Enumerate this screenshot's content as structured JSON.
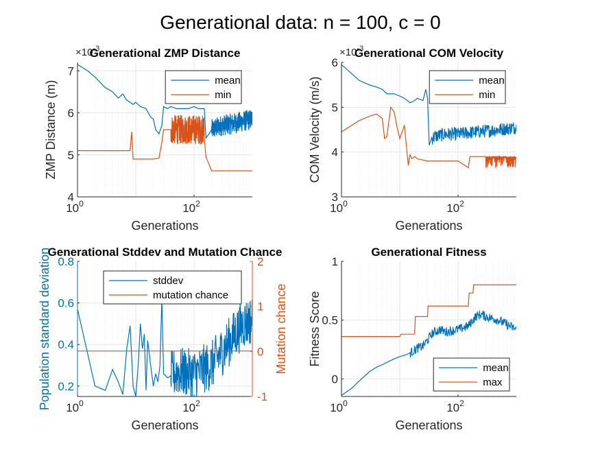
{
  "figure": {
    "title": "Generational data: n = 100, c = 0"
  },
  "colors": {
    "blue": "#0072BD",
    "orange": "#D95319",
    "axis": "#262626",
    "grid": "#D9D9D9"
  },
  "chart_data": [
    {
      "type": "line",
      "title": "Generational ZMP Distance",
      "xlabel": "Generations",
      "ylabel": "ZMP Distance (m)",
      "exponent_label": "×10",
      "exponent_sup": "-3",
      "xscale": "log",
      "xlim": [
        1,
        1000
      ],
      "ylim": [
        4,
        7.2
      ],
      "xticks": [
        1,
        100
      ],
      "xtick_labels": [
        "10",
        "10"
      ],
      "xtick_sups": [
        "0",
        "2"
      ],
      "yticks": [
        4,
        5,
        6,
        7
      ],
      "ytick_labels": [
        "4",
        "5",
        "6",
        "7"
      ],
      "grid": true,
      "legend": {
        "position": "top-right",
        "entries": [
          "mean",
          "min"
        ]
      },
      "series": [
        {
          "name": "mean",
          "color": "#0072BD",
          "x": [
            1,
            1.5,
            2,
            3,
            4,
            5,
            6,
            7,
            8,
            9,
            10,
            12,
            15,
            18,
            20,
            22,
            25,
            28,
            30,
            35,
            40,
            50,
            60,
            80,
            100,
            120,
            150,
            160,
            180,
            200,
            300,
            500,
            700,
            1000
          ],
          "y": [
            7.15,
            7.0,
            6.85,
            6.6,
            6.5,
            6.35,
            6.45,
            6.3,
            6.25,
            6.2,
            6.25,
            6.15,
            6.1,
            5.9,
            5.85,
            5.6,
            5.5,
            5.7,
            6.15,
            6.1,
            6.15,
            6.1,
            6.1,
            6.1,
            6.15,
            6.1,
            6.1,
            5.4,
            5.5,
            5.6,
            5.7,
            5.75,
            5.8,
            5.85
          ],
          "noise": {
            "from": 200,
            "amplitude": 0.25
          }
        },
        {
          "name": "min",
          "color": "#D95319",
          "x": [
            1,
            7,
            8,
            8.5,
            9,
            10,
            20,
            25,
            28,
            30,
            40,
            100,
            150,
            160,
            200,
            1000
          ],
          "y": [
            5.1,
            5.1,
            5.1,
            5.55,
            4.9,
            4.9,
            4.9,
            4.92,
            5.3,
            5.6,
            5.6,
            5.6,
            5.6,
            4.95,
            4.62,
            4.62
          ],
          "noise": {
            "from": 40,
            "to": 150,
            "amplitude": 0.35
          }
        }
      ]
    },
    {
      "type": "line",
      "title": "Generational COM Velocity",
      "xlabel": "Generations",
      "ylabel": "COM Velocity (m/s)",
      "exponent_label": "×10",
      "exponent_sup": "-3",
      "xscale": "log",
      "xlim": [
        1,
        1000
      ],
      "ylim": [
        3,
        6
      ],
      "xticks": [
        1,
        100
      ],
      "xtick_labels": [
        "10",
        "10"
      ],
      "xtick_sups": [
        "0",
        "2"
      ],
      "yticks": [
        3,
        4,
        5,
        6
      ],
      "ytick_labels": [
        "3",
        "4",
        "5",
        "6"
      ],
      "grid": true,
      "legend": {
        "position": "top-right",
        "entries": [
          "mean",
          "min"
        ]
      },
      "series": [
        {
          "name": "mean",
          "color": "#0072BD",
          "x": [
            1,
            1.5,
            2,
            3,
            4,
            5,
            6,
            8,
            10,
            12,
            15,
            18,
            20,
            25,
            28,
            30,
            32,
            35,
            40,
            60,
            100,
            200,
            500,
            1000
          ],
          "y": [
            5.95,
            5.75,
            5.6,
            5.5,
            5.45,
            5.4,
            5.3,
            5.3,
            5.25,
            5.2,
            5.1,
            5.15,
            5.2,
            5.15,
            5.4,
            5.2,
            4.15,
            4.3,
            4.35,
            4.4,
            4.4,
            4.45,
            4.5,
            4.55
          ],
          "noise": {
            "from": 35,
            "amplitude": 0.15
          }
        },
        {
          "name": "min",
          "color": "#D95319",
          "x": [
            1,
            2,
            3,
            4,
            5,
            5.5,
            6,
            7,
            8,
            9,
            10,
            12,
            14,
            15,
            16,
            18,
            20,
            30,
            100,
            150,
            160,
            200,
            300,
            500,
            1000
          ],
          "y": [
            4.45,
            4.7,
            4.8,
            4.85,
            4.75,
            4.3,
            4.35,
            5.0,
            4.9,
            4.55,
            4.3,
            4.6,
            3.7,
            3.95,
            3.85,
            3.9,
            3.85,
            3.8,
            3.8,
            3.65,
            3.9,
            3.9,
            3.9,
            3.9,
            3.9
          ],
          "noise": {
            "from": 300,
            "amplitude": 0.25,
            "downward": true
          }
        }
      ]
    },
    {
      "type": "line",
      "title": "Generational Stddev and Mutation Chance",
      "xlabel": "Generations",
      "ylabel": "Population standard deviation",
      "ylabel_right": "Mutation chance",
      "xscale": "log",
      "xlim": [
        1,
        1000
      ],
      "ylim": [
        0.15,
        0.8
      ],
      "ylim_right": [
        -1,
        2
      ],
      "xticks": [
        1,
        100
      ],
      "xtick_labels": [
        "10",
        "10"
      ],
      "xtick_sups": [
        "0",
        "2"
      ],
      "yticks": [
        0.2,
        0.4,
        0.6,
        0.8
      ],
      "ytick_labels": [
        "0.2",
        "0.4",
        "0.6",
        "0.8"
      ],
      "yticks_right": [
        -1,
        0,
        1,
        2
      ],
      "ytick_labels_right": [
        "-1",
        "0",
        "1",
        "2"
      ],
      "grid": true,
      "legend": {
        "position": "top-center",
        "entries": [
          "stddev",
          "mutation chance"
        ]
      },
      "series": [
        {
          "name": "stddev",
          "color": "#0072BD",
          "axis": "left",
          "x": [
            1,
            2,
            3,
            4,
            5,
            6,
            7,
            8,
            9,
            10,
            11,
            12,
            13,
            14,
            15,
            16,
            18,
            20,
            22,
            24,
            26,
            28,
            30,
            35,
            40,
            50,
            100,
            200,
            500,
            700,
            1000
          ],
          "y": [
            0.57,
            0.2,
            0.18,
            0.28,
            0.22,
            0.16,
            0.38,
            0.49,
            0.2,
            0.15,
            0.3,
            0.5,
            0.38,
            0.45,
            0.18,
            0.42,
            0.3,
            0.2,
            0.26,
            0.22,
            0.3,
            0.62,
            0.26,
            0.24,
            0.25,
            0.27,
            0.26,
            0.3,
            0.45,
            0.5,
            0.52
          ],
          "noise": {
            "from": 40,
            "amplitude": 0.12
          }
        },
        {
          "name": "mutation chance",
          "color": "#D95319",
          "axis": "right",
          "x": [
            1,
            1000
          ],
          "y": [
            0.01,
            0.01
          ]
        }
      ]
    },
    {
      "type": "line",
      "title": "Generational Fitness",
      "xlabel": "Generations",
      "ylabel": "Fitness Score",
      "xscale": "log",
      "xlim": [
        1,
        1000
      ],
      "ylim": [
        -0.15,
        1
      ],
      "xticks": [
        1,
        100
      ],
      "xtick_labels": [
        "10",
        "10"
      ],
      "xtick_sups": [
        "0",
        "2"
      ],
      "yticks": [
        0,
        0.5,
        1
      ],
      "ytick_labels": [
        "0",
        "0.5",
        "1"
      ],
      "grid": true,
      "legend": {
        "position": "bottom-right",
        "entries": [
          "mean",
          "max"
        ]
      },
      "series": [
        {
          "name": "mean",
          "color": "#0072BD",
          "x": [
            1,
            1.5,
            2,
            3,
            4,
            5,
            6,
            8,
            10,
            12,
            15,
            20,
            25,
            30,
            35,
            40,
            50,
            60,
            80,
            100,
            150,
            200,
            250,
            300,
            500,
            700,
            1000
          ],
          "y": [
            -0.14,
            -0.08,
            -0.02,
            0.06,
            0.1,
            0.12,
            0.14,
            0.17,
            0.19,
            0.2,
            0.22,
            0.26,
            0.28,
            0.33,
            0.38,
            0.4,
            0.42,
            0.4,
            0.41,
            0.42,
            0.45,
            0.53,
            0.55,
            0.53,
            0.5,
            0.46,
            0.42
          ],
          "noise": {
            "from": 15,
            "amplitude": 0.04
          }
        },
        {
          "name": "max",
          "color": "#D95319",
          "x": [
            1,
            10,
            10.5,
            18,
            18.5,
            30,
            30.5,
            150,
            155,
            180,
            185,
            1000
          ],
          "y": [
            0.36,
            0.36,
            0.38,
            0.38,
            0.53,
            0.53,
            0.62,
            0.62,
            0.73,
            0.73,
            0.8,
            0.8
          ]
        }
      ]
    }
  ]
}
